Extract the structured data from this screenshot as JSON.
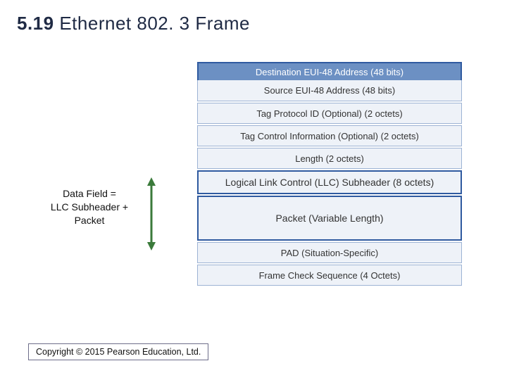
{
  "title": {
    "number": "5.19",
    "text": "Ethernet 802. 3 Frame"
  },
  "colors": {
    "header_bg": "#6c90c3",
    "header_fg": "#ffffff",
    "header_border": "#2f5aa0",
    "body_bg": "#eef2f8",
    "body_fg": "#333333",
    "body_border": "#9db3d4",
    "big_border": "#2f5aa0",
    "swoosh_dark": "#0b1a3a",
    "swoosh_light": "#cfd6e6"
  },
  "side_label": {
    "line1": "Data Field =",
    "line2": "LLC Subheader +",
    "line3": "Packet"
  },
  "frame": {
    "group1_header": "Destination EUI-48 Address (48 bits)",
    "rows1": [
      "Source EUI-48 Address (48 bits)",
      "Tag Protocol ID (Optional) (2 octets)",
      "Tag Control Information (Optional) (2 octets)",
      "Length (2 octets)"
    ],
    "group2": {
      "llc": "Logical Link Control (LLC) Subheader (8 octets)",
      "packet": "Packet (Variable Length)"
    },
    "rows3": [
      "PAD (Situation-Specific)",
      "Frame Check Sequence (4 Octets)"
    ]
  },
  "copyright": "Copyright © 2015 Pearson Education, Ltd."
}
